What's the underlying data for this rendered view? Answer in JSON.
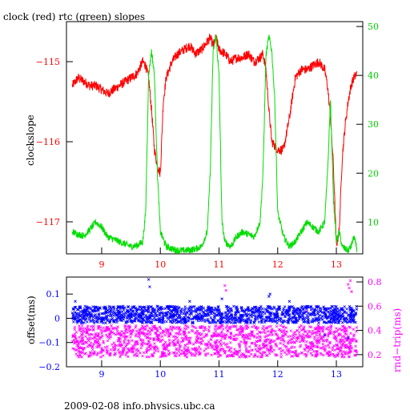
{
  "title": "clock (red) rtc (green) slopes",
  "footer": "2009-02-08 info.physics.ubc.ca",
  "colors": {
    "clock": "#ff0000",
    "rtc": "#00dd00",
    "offset": "#0000ff",
    "rndtrip": "#ff00ff",
    "axis": "#000000"
  },
  "chart_data": [
    {
      "type": "line",
      "title": "clock (red) rtc (green) slopes",
      "ylabel": "clockslope",
      "y2label": "",
      "xlim": [
        8.4,
        13.45
      ],
      "ylim": [
        -117.4,
        -114.5
      ],
      "y2lim": [
        3.5,
        51
      ],
      "x_ticks": [
        9,
        10,
        11,
        12,
        13
      ],
      "y_ticks": [
        -115,
        -116,
        -117
      ],
      "y2_ticks": [
        10,
        20,
        30,
        40,
        50
      ],
      "series": [
        {
          "name": "clock",
          "axis": "left",
          "x": [
            8.5,
            8.55,
            8.6,
            8.7,
            8.8,
            8.9,
            9.0,
            9.1,
            9.2,
            9.3,
            9.4,
            9.5,
            9.6,
            9.7,
            9.75,
            9.8,
            9.85,
            9.9,
            9.95,
            10.0,
            10.05,
            10.1,
            10.2,
            10.3,
            10.4,
            10.5,
            10.6,
            10.7,
            10.8,
            10.85,
            10.9,
            10.95,
            11.0,
            11.1,
            11.2,
            11.3,
            11.4,
            11.5,
            11.6,
            11.7,
            11.75,
            11.8,
            11.85,
            11.9,
            12.0,
            12.1,
            12.2,
            12.3,
            12.4,
            12.5,
            12.6,
            12.7,
            12.8,
            12.85,
            12.9,
            12.95,
            13.0,
            13.05,
            13.1,
            13.15,
            13.2,
            13.25,
            13.3,
            13.35
          ],
          "values": [
            -115.3,
            -115.25,
            -115.2,
            -115.25,
            -115.3,
            -115.3,
            -115.35,
            -115.4,
            -115.35,
            -115.3,
            -115.25,
            -115.2,
            -115.15,
            -115.0,
            -115.05,
            -115.2,
            -115.6,
            -116.1,
            -116.3,
            -116.4,
            -115.5,
            -115.2,
            -115.0,
            -114.9,
            -114.85,
            -114.8,
            -114.9,
            -114.85,
            -114.75,
            -114.7,
            -114.8,
            -114.7,
            -114.85,
            -114.9,
            -115.0,
            -114.95,
            -114.95,
            -114.9,
            -115.0,
            -114.95,
            -114.9,
            -115.1,
            -115.6,
            -116.0,
            -116.1,
            -116.1,
            -115.7,
            -115.2,
            -115.1,
            -115.1,
            -115.05,
            -115.0,
            -115.1,
            -115.3,
            -115.7,
            -116.3,
            -117.3,
            -117.1,
            -116.2,
            -115.8,
            -115.5,
            -115.3,
            -115.2,
            -115.15
          ]
        },
        {
          "name": "rtc",
          "axis": "right",
          "x": [
            8.5,
            8.6,
            8.7,
            8.8,
            8.9,
            9.0,
            9.1,
            9.2,
            9.3,
            9.4,
            9.5,
            9.6,
            9.7,
            9.75,
            9.8,
            9.85,
            9.9,
            9.95,
            10.0,
            10.1,
            10.2,
            10.3,
            10.4,
            10.5,
            10.6,
            10.7,
            10.8,
            10.85,
            10.9,
            10.95,
            11.0,
            11.05,
            11.1,
            11.2,
            11.3,
            11.4,
            11.5,
            11.6,
            11.7,
            11.75,
            11.8,
            11.85,
            11.9,
            11.95,
            12.0,
            12.1,
            12.2,
            12.3,
            12.4,
            12.5,
            12.6,
            12.7,
            12.8,
            12.85,
            12.9,
            12.95,
            13.0,
            13.05,
            13.1,
            13.15,
            13.2,
            13.25,
            13.3,
            13.35
          ],
          "values": [
            8,
            7.5,
            7.2,
            8.5,
            10,
            9,
            7,
            6.5,
            6,
            5.5,
            5,
            5.2,
            6,
            12,
            40,
            45,
            40,
            20,
            8,
            5,
            4.5,
            4.2,
            4.2,
            4.3,
            4.5,
            5,
            8,
            20,
            45,
            48,
            40,
            10,
            6,
            5,
            7,
            8,
            7.5,
            7,
            10,
            20,
            44,
            48,
            45,
            35,
            12,
            7,
            5,
            6,
            8,
            10,
            9,
            8,
            10,
            20,
            35,
            15,
            6,
            8,
            5,
            4.5,
            4.2,
            5,
            7,
            4.5
          ]
        }
      ]
    },
    {
      "type": "scatter",
      "ylabel": "offset(ms)",
      "y2label": "rnd−trip(ms)",
      "xlim": [
        8.4,
        13.45
      ],
      "ylim": [
        -0.2,
        0.17
      ],
      "y2lim": [
        0.1,
        0.84
      ],
      "x_ticks": [
        9,
        10,
        11,
        12,
        13
      ],
      "y_ticks": [
        0.1,
        0,
        -0.1,
        -0.2
      ],
      "y_tick_labels": [
        "0.1",
        "0",
        "−0.1",
        "−0.2"
      ],
      "y2_ticks": [
        0.2,
        0.4,
        0.6,
        0.8
      ],
      "y2_tick_labels": [
        "0.2",
        "0.4",
        "0.6",
        "0.8"
      ],
      "series": [
        {
          "name": "offset",
          "axis": "left",
          "x_range": [
            8.5,
            13.35
          ],
          "band": [
            -0.02,
            0.05
          ],
          "outliers": [
            [
              8.55,
              0.07
            ],
            [
              9.8,
              0.16
            ],
            [
              9.82,
              0.13
            ],
            [
              11.05,
              0.08
            ],
            [
              11.85,
              0.09
            ],
            [
              11.87,
              0.1
            ],
            [
              12.8,
              -0.07
            ],
            [
              13.2,
              -0.08
            ],
            [
              10.5,
              0.07
            ],
            [
              12.2,
              0.07
            ]
          ]
        },
        {
          "name": "rndtrip",
          "axis": "right",
          "x_range": [
            8.5,
            13.35
          ],
          "band": [
            0.18,
            0.44
          ],
          "outliers": [
            [
              11.1,
              0.77
            ],
            [
              11.12,
              0.73
            ],
            [
              13.2,
              0.78
            ],
            [
              13.22,
              0.75
            ],
            [
              13.24,
              0.81
            ],
            [
              13.26,
              0.72
            ],
            [
              9.8,
              0.57
            ],
            [
              12.5,
              0.56
            ]
          ]
        }
      ]
    }
  ]
}
